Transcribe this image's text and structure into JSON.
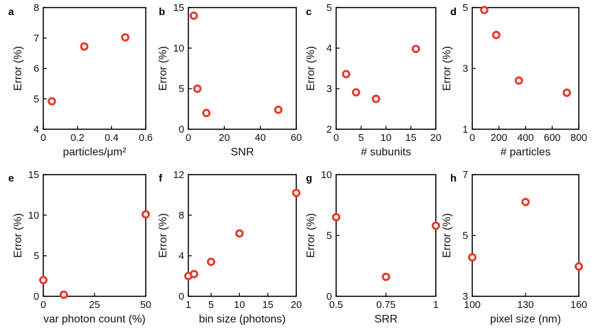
{
  "chart_data": [
    {
      "panel": "a",
      "type": "scatter",
      "xlabel": "particles/μm²",
      "ylabel": "Error (%)",
      "xlim": [
        0,
        0.6
      ],
      "ylim": [
        4,
        8
      ],
      "xticks": [
        0,
        0.2,
        0.4,
        0.6
      ],
      "xtick_labels": [
        "0",
        "0.2",
        "0.4",
        "0.6"
      ],
      "yticks": [
        4,
        5,
        6,
        7,
        8
      ],
      "ytick_labels": [
        "4",
        "5",
        "6",
        "7",
        "8"
      ],
      "x": [
        0.05,
        0.24,
        0.48
      ],
      "y": [
        4.92,
        6.72,
        7.02
      ]
    },
    {
      "panel": "b",
      "type": "scatter",
      "xlabel": "SNR",
      "ylabel": "Error (%)",
      "xlim": [
        0,
        60
      ],
      "ylim": [
        0,
        15
      ],
      "xticks": [
        0,
        20,
        40,
        60
      ],
      "xtick_labels": [
        "0",
        "20",
        "40",
        "60"
      ],
      "yticks": [
        0,
        5,
        10,
        15
      ],
      "ytick_labels": [
        "0",
        "5",
        "10",
        "15"
      ],
      "x": [
        3,
        5,
        10,
        50
      ],
      "y": [
        14,
        5,
        2,
        2.4
      ]
    },
    {
      "panel": "c",
      "type": "scatter",
      "xlabel": "# subunits",
      "ylabel": "Error (%)",
      "xlim": [
        0,
        20
      ],
      "ylim": [
        2,
        5
      ],
      "xticks": [
        0,
        5,
        10,
        15,
        20
      ],
      "xtick_labels": [
        "0",
        "5",
        "10",
        "15",
        "20"
      ],
      "yticks": [
        2,
        3,
        4,
        5
      ],
      "ytick_labels": [
        "2",
        "3",
        "4",
        "5"
      ],
      "x": [
        2,
        4,
        8,
        16
      ],
      "y": [
        3.36,
        2.91,
        2.75,
        3.98
      ]
    },
    {
      "panel": "d",
      "type": "scatter",
      "xlabel": "# particles",
      "ylabel": "Error (%)",
      "xlim": [
        0,
        800
      ],
      "ylim": [
        1,
        5
      ],
      "xticks": [
        0,
        200,
        400,
        600,
        800
      ],
      "xtick_labels": [
        "0",
        "200",
        "400",
        "600",
        "800"
      ],
      "yticks": [
        1,
        3,
        5
      ],
      "ytick_labels": [
        "1",
        "3",
        "5"
      ],
      "x": [
        90,
        180,
        350,
        710
      ],
      "y": [
        4.92,
        4.1,
        2.6,
        2.2
      ]
    },
    {
      "panel": "e",
      "type": "scatter",
      "xlabel": "var photon count (%)",
      "ylabel": "Error (%)",
      "xlim": [
        0,
        50
      ],
      "ylim": [
        0,
        15
      ],
      "xticks": [
        0,
        25,
        50
      ],
      "xtick_labels": [
        "0",
        "25",
        "50"
      ],
      "yticks": [
        0,
        5,
        10,
        15
      ],
      "ytick_labels": [
        "0",
        "5",
        "10",
        "15"
      ],
      "x": [
        0,
        10,
        50
      ],
      "y": [
        2,
        0.2,
        10.1
      ]
    },
    {
      "panel": "f",
      "type": "scatter",
      "xlabel": "bin size (photons)",
      "ylabel": "Error (%)",
      "xlim": [
        1,
        20
      ],
      "ylim": [
        0,
        12
      ],
      "xticks": [
        1,
        5,
        10,
        15,
        20
      ],
      "xtick_labels": [
        "1",
        "5",
        "10",
        "15",
        "20"
      ],
      "yticks": [
        0,
        4,
        8,
        12
      ],
      "ytick_labels": [
        "0",
        "4",
        "8",
        "12"
      ],
      "x": [
        1,
        2,
        5,
        10,
        20
      ],
      "y": [
        2.0,
        2.2,
        3.4,
        6.2,
        10.2
      ]
    },
    {
      "panel": "g",
      "type": "scatter",
      "xlabel": "SRR",
      "ylabel": "Error (%)",
      "xlim": [
        0.5,
        1
      ],
      "ylim": [
        0,
        10
      ],
      "xticks": [
        0.5,
        0.75,
        1
      ],
      "xtick_labels": [
        "0.5",
        "0.75",
        "1"
      ],
      "yticks": [
        0,
        5,
        10
      ],
      "ytick_labels": [
        "0",
        "5",
        "10"
      ],
      "x": [
        0.5,
        0.75,
        1
      ],
      "y": [
        6.5,
        1.6,
        5.8
      ]
    },
    {
      "panel": "h",
      "type": "scatter",
      "xlabel": "pixel size (nm)",
      "ylabel": "Error (%)",
      "xlim": [
        100,
        160
      ],
      "ylim": [
        3,
        7
      ],
      "xticks": [
        100,
        130,
        160
      ],
      "xtick_labels": [
        "100",
        "130",
        "160"
      ],
      "yticks": [
        3,
        5,
        7
      ],
      "ytick_labels": [
        "3",
        "5",
        "7"
      ],
      "x": [
        100,
        130,
        160
      ],
      "y": [
        4.28,
        6.1,
        3.98
      ]
    }
  ],
  "marker_color": "#e8392b"
}
